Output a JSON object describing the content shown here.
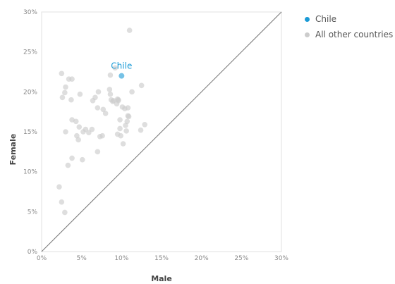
{
  "chart_data": {
    "type": "scatter",
    "title": "",
    "xlabel": "Male",
    "ylabel": "Female",
    "xlim": [
      0,
      30
    ],
    "ylim": [
      0,
      30
    ],
    "x_ticks": [
      "0%",
      "5%",
      "10%",
      "15%",
      "20%",
      "25%",
      "30%"
    ],
    "y_ticks": [
      "0%",
      "5%",
      "10%",
      "15%",
      "20%",
      "25%",
      "30%"
    ],
    "reference_line": "y = x",
    "grid": false,
    "legend_position": "right",
    "highlight": {
      "label": "Chile",
      "color": "#1a9ad6",
      "point": [
        10,
        22
      ]
    },
    "series": [
      {
        "name": "Chile",
        "color": "#1a9ad6",
        "points": [
          [
            10,
            22
          ]
        ]
      },
      {
        "name": "All other countries",
        "color": "#cccccc",
        "points": [
          [
            2.2,
            8.1
          ],
          [
            2.5,
            6.2
          ],
          [
            2.9,
            4.9
          ],
          [
            3.0,
            15.0
          ],
          [
            3.3,
            10.8
          ],
          [
            3.8,
            11.7
          ],
          [
            2.5,
            22.3
          ],
          [
            3.4,
            21.6
          ],
          [
            3.8,
            21.6
          ],
          [
            3.0,
            20.6
          ],
          [
            2.9,
            19.9
          ],
          [
            2.6,
            19.3
          ],
          [
            3.7,
            19.0
          ],
          [
            3.8,
            16.5
          ],
          [
            4.3,
            16.3
          ],
          [
            4.4,
            14.5
          ],
          [
            4.6,
            14.0
          ],
          [
            4.7,
            15.6
          ],
          [
            4.8,
            19.7
          ],
          [
            5.1,
            11.5
          ],
          [
            5.2,
            15.0
          ],
          [
            5.5,
            15.3
          ],
          [
            5.9,
            14.9
          ],
          [
            6.3,
            15.3
          ],
          [
            6.4,
            18.9
          ],
          [
            6.7,
            19.3
          ],
          [
            7.0,
            18.0
          ],
          [
            7.1,
            20.0
          ],
          [
            7.0,
            12.5
          ],
          [
            7.3,
            14.4
          ],
          [
            7.6,
            14.5
          ],
          [
            7.7,
            17.8
          ],
          [
            8.0,
            17.3
          ],
          [
            8.5,
            20.3
          ],
          [
            8.6,
            19.7
          ],
          [
            8.7,
            19.0
          ],
          [
            8.6,
            22.1
          ],
          [
            9.0,
            18.9
          ],
          [
            9.2,
            23.0
          ],
          [
            9.4,
            18.5
          ],
          [
            9.5,
            19.1
          ],
          [
            9.6,
            18.9
          ],
          [
            9.5,
            14.7
          ],
          [
            9.8,
            16.5
          ],
          [
            9.8,
            15.4
          ],
          [
            9.9,
            14.5
          ],
          [
            10.1,
            18.1
          ],
          [
            10.2,
            13.5
          ],
          [
            10.4,
            17.9
          ],
          [
            10.5,
            15.8
          ],
          [
            10.6,
            15.1
          ],
          [
            10.7,
            16.3
          ],
          [
            10.8,
            17.0
          ],
          [
            10.9,
            16.9
          ],
          [
            11.0,
            27.7
          ],
          [
            11.3,
            20.0
          ],
          [
            12.4,
            15.2
          ],
          [
            12.5,
            20.8
          ],
          [
            12.9,
            15.9
          ],
          [
            10.8,
            18.0
          ],
          [
            8.9,
            18.8
          ],
          [
            9.6,
            19.0
          ]
        ]
      }
    ]
  }
}
